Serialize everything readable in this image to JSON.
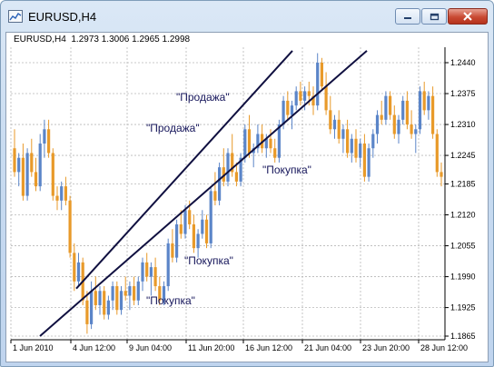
{
  "window": {
    "title": "EURUSD,H4",
    "icon": "chart-icon",
    "controls": [
      "minimize-icon",
      "maximize-icon",
      "close-icon"
    ]
  },
  "readout": {
    "symbol": "EURUSD,H4",
    "open": "1.2973",
    "high": "1.3006",
    "low": "1.2965",
    "close": "1.2998"
  },
  "annotations": {
    "sell_1": "\"Продажа\"",
    "sell_2": "\"Продажа\"",
    "buy_1": "\"Покупка\"",
    "buy_2": "\"Покупка\"",
    "buy_3": "\"Покупка\""
  },
  "colors": {
    "bull": "#5b85c8",
    "bear": "#e89a2a",
    "channel": "#101040",
    "grid": "#b8b8b8"
  },
  "chart_data": {
    "type": "candlestick",
    "symbol": "EURUSD",
    "timeframe": "H4",
    "grid": true,
    "y_axis": {
      "side": "right",
      "ticks": [
        "1.2440",
        "1.2375",
        "1.2310",
        "1.2245",
        "1.2185",
        "1.2120",
        "1.2055",
        "1.1990",
        "1.1925",
        "1.1865"
      ],
      "range": [
        1.1855,
        1.2465
      ]
    },
    "x_axis": {
      "ticks": [
        "1 Jun 2010",
        "4 Jun 12:00",
        "9 Jun 04:00",
        "11 Jun 20:00",
        "16 Jun 12:00",
        "21 Jun 04:00",
        "23 Jun 20:00",
        "28 Jun 12:00"
      ]
    },
    "series": [
      {
        "name": "trend-channel-upper",
        "type": "line",
        "points": [
          [
            "4 Jun 12:00",
            1.1965
          ],
          [
            "22 Jun 00:00",
            1.2465
          ]
        ]
      },
      {
        "name": "trend-channel-lower",
        "type": "line",
        "points": [
          [
            "1 Jun 2010",
            1.1865
          ],
          [
            "23 Jun 20:00",
            1.2465
          ]
        ]
      }
    ],
    "candles": [
      [
        1.226,
        1.23,
        1.22,
        1.221
      ],
      [
        1.221,
        1.225,
        1.218,
        1.224
      ],
      [
        1.224,
        1.227,
        1.215,
        1.216
      ],
      [
        1.216,
        1.226,
        1.215,
        1.225
      ],
      [
        1.225,
        1.228,
        1.22,
        1.221
      ],
      [
        1.221,
        1.224,
        1.217,
        1.218
      ],
      [
        1.218,
        1.229,
        1.217,
        1.227
      ],
      [
        1.227,
        1.232,
        1.224,
        1.23
      ],
      [
        1.23,
        1.232,
        1.224,
        1.225
      ],
      [
        1.225,
        1.226,
        1.215,
        1.216
      ],
      [
        1.216,
        1.218,
        1.213,
        1.215
      ],
      [
        1.215,
        1.219,
        1.213,
        1.218
      ],
      [
        1.218,
        1.22,
        1.214,
        1.215
      ],
      [
        1.215,
        1.216,
        1.203,
        1.204
      ],
      [
        1.204,
        1.206,
        1.196,
        1.198
      ],
      [
        1.198,
        1.204,
        1.197,
        1.202
      ],
      [
        1.202,
        1.203,
        1.193,
        1.194
      ],
      [
        1.194,
        1.196,
        1.187,
        1.189
      ],
      [
        1.189,
        1.198,
        1.188,
        1.196
      ],
      [
        1.196,
        1.199,
        1.192,
        1.193
      ],
      [
        1.193,
        1.197,
        1.191,
        1.196
      ],
      [
        1.196,
        1.197,
        1.19,
        1.191
      ],
      [
        1.191,
        1.195,
        1.19,
        1.194
      ],
      [
        1.194,
        1.198,
        1.192,
        1.197
      ],
      [
        1.197,
        1.198,
        1.191,
        1.192
      ],
      [
        1.192,
        1.197,
        1.191,
        1.196
      ],
      [
        1.196,
        1.199,
        1.194,
        1.195
      ],
      [
        1.195,
        1.198,
        1.192,
        1.197
      ],
      [
        1.197,
        1.199,
        1.193,
        1.194
      ],
      [
        1.194,
        1.199,
        1.193,
        1.198
      ],
      [
        1.198,
        1.203,
        1.196,
        1.202
      ],
      [
        1.202,
        1.204,
        1.198,
        1.199
      ],
      [
        1.199,
        1.202,
        1.195,
        1.201
      ],
      [
        1.201,
        1.203,
        1.196,
        1.197
      ],
      [
        1.197,
        1.199,
        1.193,
        1.194
      ],
      [
        1.194,
        1.198,
        1.193,
        1.197
      ],
      [
        1.197,
        1.207,
        1.196,
        1.206
      ],
      [
        1.206,
        1.209,
        1.202,
        1.203
      ],
      [
        1.203,
        1.211,
        1.202,
        1.21
      ],
      [
        1.21,
        1.213,
        1.207,
        1.208
      ],
      [
        1.208,
        1.214,
        1.207,
        1.213
      ],
      [
        1.213,
        1.215,
        1.209,
        1.21
      ],
      [
        1.21,
        1.212,
        1.204,
        1.205
      ],
      [
        1.205,
        1.209,
        1.203,
        1.208
      ],
      [
        1.208,
        1.213,
        1.207,
        1.211
      ],
      [
        1.211,
        1.212,
        1.205,
        1.206
      ],
      [
        1.206,
        1.218,
        1.205,
        1.217
      ],
      [
        1.217,
        1.221,
        1.214,
        1.215
      ],
      [
        1.215,
        1.223,
        1.214,
        1.222
      ],
      [
        1.222,
        1.226,
        1.218,
        1.219
      ],
      [
        1.219,
        1.226,
        1.218,
        1.225
      ],
      [
        1.225,
        1.229,
        1.22,
        1.221
      ],
      [
        1.221,
        1.223,
        1.218,
        1.219
      ],
      [
        1.219,
        1.225,
        1.218,
        1.224
      ],
      [
        1.224,
        1.231,
        1.223,
        1.23
      ],
      [
        1.23,
        1.233,
        1.224,
        1.225
      ],
      [
        1.225,
        1.227,
        1.222,
        1.226
      ],
      [
        1.226,
        1.231,
        1.225,
        1.229
      ],
      [
        1.229,
        1.231,
        1.225,
        1.226
      ],
      [
        1.226,
        1.229,
        1.224,
        1.228
      ],
      [
        1.228,
        1.23,
        1.225,
        1.226
      ],
      [
        1.226,
        1.228,
        1.223,
        1.224
      ],
      [
        1.224,
        1.232,
        1.223,
        1.231
      ],
      [
        1.231,
        1.237,
        1.23,
        1.236
      ],
      [
        1.236,
        1.238,
        1.232,
        1.233
      ],
      [
        1.233,
        1.236,
        1.23,
        1.235
      ],
      [
        1.235,
        1.239,
        1.234,
        1.238
      ],
      [
        1.238,
        1.24,
        1.235,
        1.236
      ],
      [
        1.236,
        1.239,
        1.234,
        1.238
      ],
      [
        1.238,
        1.24,
        1.235,
        1.237
      ],
      [
        1.237,
        1.239,
        1.233,
        1.235
      ],
      [
        1.235,
        1.246,
        1.234,
        1.244
      ],
      [
        1.244,
        1.245,
        1.238,
        1.239
      ],
      [
        1.239,
        1.242,
        1.233,
        1.234
      ],
      [
        1.234,
        1.237,
        1.229,
        1.23
      ],
      [
        1.23,
        1.233,
        1.228,
        1.232
      ],
      [
        1.232,
        1.234,
        1.227,
        1.228
      ],
      [
        1.228,
        1.231,
        1.225,
        1.23
      ],
      [
        1.23,
        1.232,
        1.224,
        1.225
      ],
      [
        1.225,
        1.229,
        1.223,
        1.228
      ],
      [
        1.228,
        1.23,
        1.223,
        1.224
      ],
      [
        1.224,
        1.228,
        1.222,
        1.227
      ],
      [
        1.227,
        1.229,
        1.219,
        1.22
      ],
      [
        1.22,
        1.227,
        1.219,
        1.226
      ],
      [
        1.226,
        1.23,
        1.224,
        1.229
      ],
      [
        1.229,
        1.234,
        1.227,
        1.233
      ],
      [
        1.233,
        1.236,
        1.231,
        1.232
      ],
      [
        1.232,
        1.238,
        1.231,
        1.237
      ],
      [
        1.237,
        1.238,
        1.232,
        1.233
      ],
      [
        1.233,
        1.235,
        1.228,
        1.229
      ],
      [
        1.229,
        1.233,
        1.227,
        1.232
      ],
      [
        1.232,
        1.237,
        1.231,
        1.236
      ],
      [
        1.236,
        1.238,
        1.23,
        1.231
      ],
      [
        1.231,
        1.234,
        1.228,
        1.229
      ],
      [
        1.229,
        1.231,
        1.225,
        1.23
      ],
      [
        1.23,
        1.239,
        1.229,
        1.238
      ],
      [
        1.238,
        1.24,
        1.233,
        1.234
      ],
      [
        1.234,
        1.238,
        1.232,
        1.237
      ],
      [
        1.237,
        1.239,
        1.228,
        1.229
      ],
      [
        1.229,
        1.23,
        1.22,
        1.221
      ],
      [
        1.221,
        1.223,
        1.218,
        1.22
      ]
    ]
  }
}
